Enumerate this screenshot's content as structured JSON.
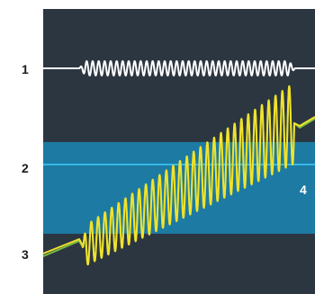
{
  "labels": {
    "l1": "1",
    "l2": "2",
    "l3": "3",
    "l4": "4"
  },
  "colors": {
    "page_bg": "#ffffff",
    "scope_bg": "#2c3641",
    "band_fill": "#1d7aa3",
    "midline": "#35b8e8",
    "trace_white": "#ffffff",
    "trace_yellow": "#f2e22c",
    "trace_green": "#7cc042",
    "label_dark": "#1b1b1b",
    "label_light": "#ffffff"
  },
  "icons": {}
}
